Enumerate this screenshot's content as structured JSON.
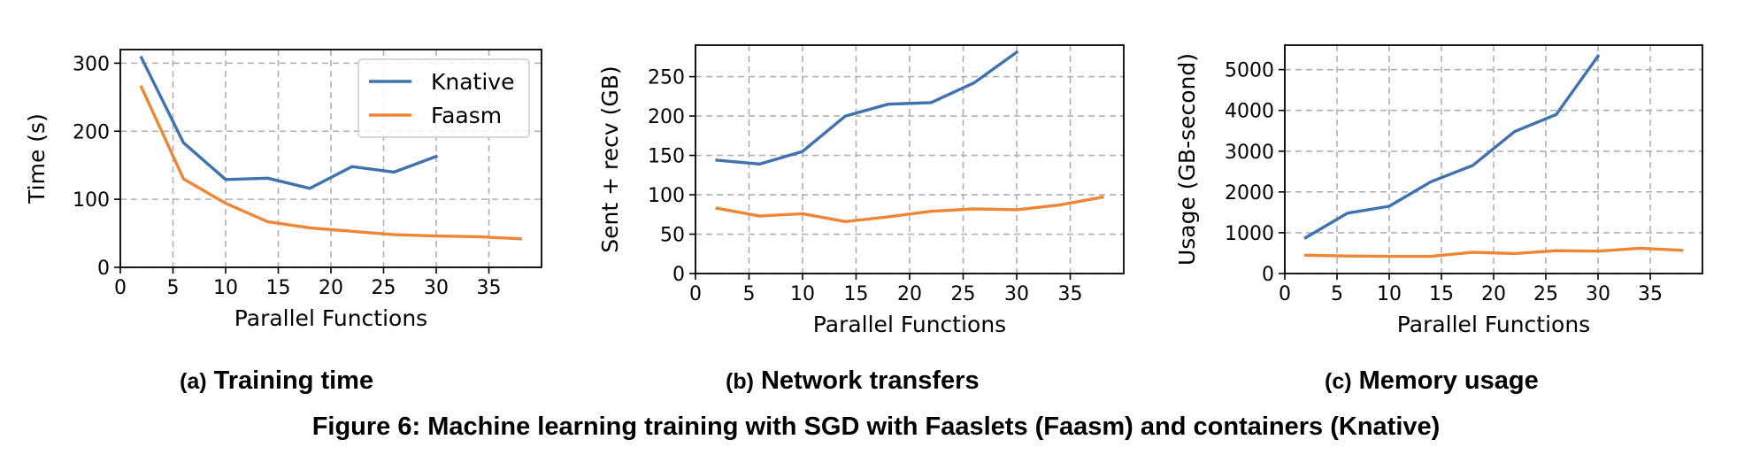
{
  "colors": {
    "knative": "#3f72af",
    "faasm": "#ee8636",
    "grid": "#b0b0b0"
  },
  "chart_data": [
    {
      "type": "line",
      "xlabel": "Parallel Functions",
      "ylabel": "Time (s)",
      "xlim": [
        0,
        40
      ],
      "ylim": [
        0,
        320
      ],
      "xticks": [
        0,
        5,
        10,
        15,
        20,
        25,
        30,
        35
      ],
      "yticks": [
        0,
        100,
        200,
        300
      ],
      "grid": true,
      "legend": {
        "placement": "top-right",
        "entries": [
          "Knative",
          "Faasm"
        ]
      },
      "series": [
        {
          "name": "Knative",
          "x": [
            2,
            6,
            10,
            14,
            18,
            22,
            26,
            30
          ],
          "y": [
            308,
            183,
            129,
            131,
            116,
            148,
            140,
            163
          ]
        },
        {
          "name": "Faasm",
          "x": [
            2,
            6,
            10,
            14,
            18,
            22,
            26,
            30,
            34,
            38
          ],
          "y": [
            265,
            130,
            94,
            67,
            58,
            53,
            48,
            46,
            45,
            42
          ]
        }
      ],
      "caption_tag": "(a)",
      "caption_text": "Training time"
    },
    {
      "type": "line",
      "xlabel": "Parallel Functions",
      "ylabel": "Sent + recv (GB)",
      "xlim": [
        0,
        40
      ],
      "ylim": [
        0,
        290
      ],
      "xticks": [
        0,
        5,
        10,
        15,
        20,
        25,
        30,
        35
      ],
      "yticks": [
        0,
        50,
        100,
        150,
        200,
        250
      ],
      "grid": true,
      "series": [
        {
          "name": "Knative",
          "x": [
            2,
            6,
            10,
            14,
            18,
            22,
            26,
            30
          ],
          "y": [
            144,
            139,
            155,
            200,
            215,
            217,
            242,
            281
          ]
        },
        {
          "name": "Faasm",
          "x": [
            2,
            6,
            10,
            14,
            18,
            22,
            26,
            30,
            34,
            38
          ],
          "y": [
            83,
            73,
            76,
            66,
            72,
            79,
            82,
            81,
            87,
            97
          ]
        }
      ],
      "caption_tag": "(b)",
      "caption_text": "Network transfers"
    },
    {
      "type": "line",
      "xlabel": "Parallel Functions",
      "ylabel": "Usage (GB-second)",
      "xlim": [
        0,
        40
      ],
      "ylim": [
        0,
        5600
      ],
      "xticks": [
        0,
        5,
        10,
        15,
        20,
        25,
        30,
        35
      ],
      "yticks": [
        0,
        1000,
        2000,
        3000,
        4000,
        5000
      ],
      "grid": true,
      "series": [
        {
          "name": "Knative",
          "x": [
            2,
            6,
            10,
            14,
            18,
            22,
            26,
            30
          ],
          "y": [
            880,
            1480,
            1650,
            2250,
            2650,
            3480,
            3900,
            5330
          ]
        },
        {
          "name": "Faasm",
          "x": [
            2,
            6,
            10,
            14,
            18,
            22,
            26,
            30,
            34,
            38
          ],
          "y": [
            450,
            430,
            420,
            420,
            520,
            490,
            560,
            550,
            620,
            570
          ]
        }
      ],
      "caption_tag": "(c)",
      "caption_text": "Memory usage"
    }
  ],
  "figure_caption": "Figure 6: Machine learning training with SGD with Faaslets (Faasm) and containers (Knative)"
}
